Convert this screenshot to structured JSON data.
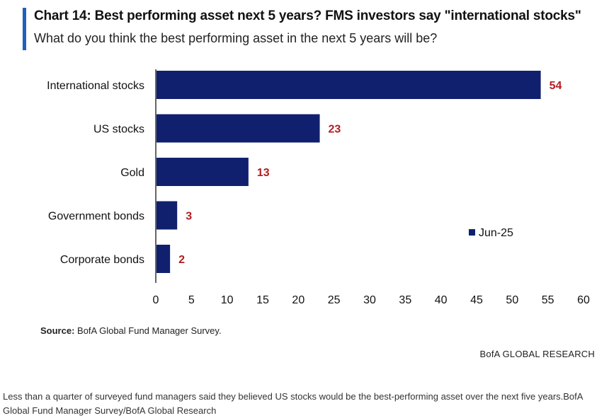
{
  "header": {
    "title": "Chart 14: Best performing asset next 5 years? FMS investors say \"international stocks\"",
    "subtitle": "What do you think the best performing asset in the next 5 years will be?"
  },
  "colors": {
    "accent": "#1f5fc0",
    "bar": "#10206e",
    "value_label": "#b01e22"
  },
  "chart_data": {
    "type": "bar",
    "orientation": "horizontal",
    "categories": [
      "International stocks",
      "US stocks",
      "Gold",
      "Government bonds",
      "Corporate bonds"
    ],
    "series": [
      {
        "name": "Jun-25",
        "values": [
          54,
          23,
          13,
          3,
          2
        ]
      }
    ],
    "xlim": [
      0,
      60
    ],
    "xticks": [
      0,
      5,
      10,
      15,
      20,
      25,
      30,
      35,
      40,
      45,
      50,
      55,
      60
    ],
    "title": "Chart 14: Best performing asset next 5 years? FMS investors say \"international stocks\"",
    "xlabel": "",
    "ylabel": "",
    "legend_position": "right",
    "grid": false
  },
  "footer": {
    "source_label": "Source:",
    "source_text": " BofA Global Fund Manager Survey.",
    "brand": "BofA GLOBAL RESEARCH"
  },
  "caption": "Less than a quarter of surveyed fund managers said they believed US stocks would be the best-performing asset over the next five years.BofA Global Fund Manager Survey/BofA Global Research"
}
